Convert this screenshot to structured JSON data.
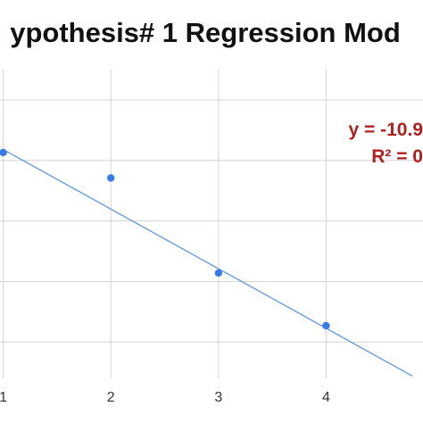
{
  "chart_data": {
    "type": "scatter",
    "title": "ypothesis# 1 Regression Mod",
    "x_ticks": [
      "1",
      "2",
      "3",
      "4"
    ],
    "points": [
      {
        "x": 1,
        "y": 3.13
      },
      {
        "x": 2,
        "y": 2.71
      },
      {
        "x": 3,
        "y": 1.14
      },
      {
        "x": 4,
        "y": 0.27
      }
    ],
    "trendline": {
      "x_start": 1,
      "y_start": 3.18,
      "x_end": 4.8,
      "y_end": -0.56
    },
    "equation_text": "y = -10.9",
    "r2_text": "R² = 0",
    "xlim": [
      0.97,
      4.9
    ],
    "ylim": [
      -0.6,
      4.5
    ],
    "grid": true,
    "colors": {
      "points": "#3b7be8",
      "trendline": "#5f97e6",
      "equation": "#b01e1e",
      "grid": "#d4d4d4"
    }
  }
}
